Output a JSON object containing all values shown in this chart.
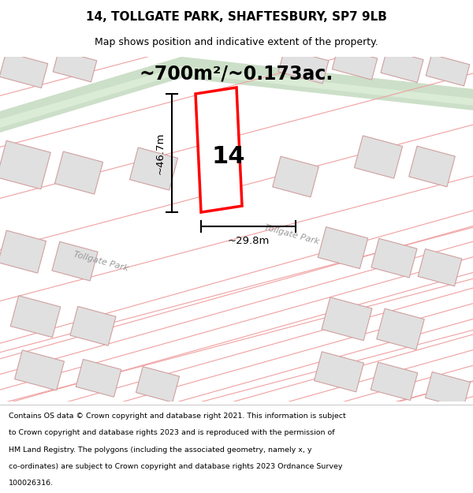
{
  "title_line1": "14, TOLLGATE PARK, SHAFTESBURY, SP7 9LB",
  "title_line2": "Map shows position and indicative extent of the property.",
  "area_label": "~700m²/~0.173ac.",
  "plot_number": "14",
  "dim_height": "~46.7m",
  "dim_width": "~29.8m",
  "road_label1": "Tollgate Park",
  "road_label2": "Tollgate Park",
  "footer_lines": [
    "Contains OS data © Crown copyright and database right 2021. This information is subject",
    "to Crown copyright and database rights 2023 and is reproduced with the permission of",
    "HM Land Registry. The polygons (including the associated geometry, namely x, y",
    "co-ordinates) are subject to Crown copyright and database rights 2023 Ordnance Survey",
    "100026316."
  ],
  "bg_color": "#ffffff",
  "plot_outline_color": "#ff0000",
  "road_fill_color": "#ccdfc8",
  "building_fill_color": "#e0e0e0",
  "street_line_color": "#f0a0a0",
  "building_edge_color": "#d0a0a0"
}
